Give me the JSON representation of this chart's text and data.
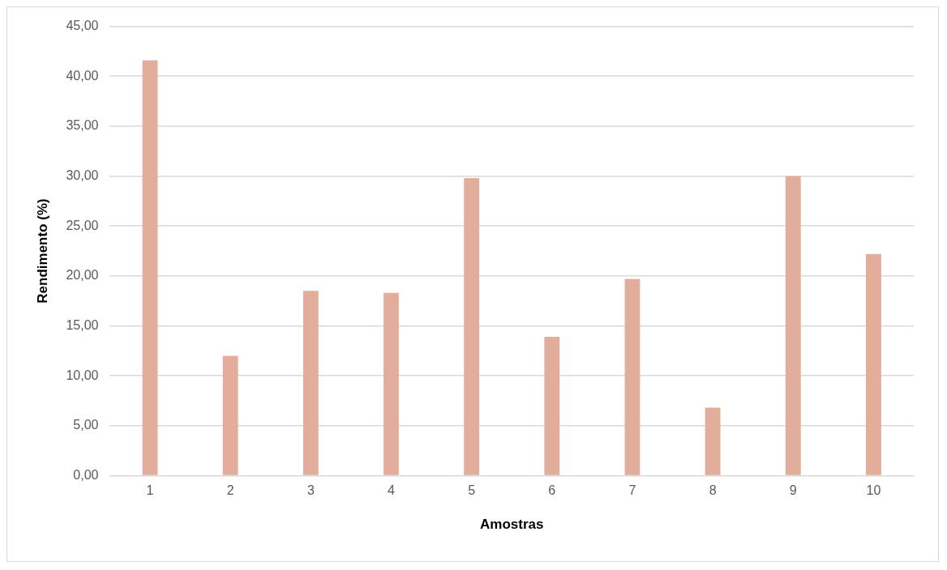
{
  "chart_data": {
    "type": "bar",
    "xlabel": "Amostras",
    "ylabel": "Rendimento (%)",
    "categories": [
      "1",
      "2",
      "3",
      "4",
      "5",
      "6",
      "7",
      "8",
      "9",
      "10"
    ],
    "values": [
      41.6,
      12.0,
      18.5,
      18.3,
      29.8,
      13.9,
      19.7,
      6.8,
      30.0,
      22.2
    ],
    "color": "#e3ad9c",
    "ylim": [
      0,
      45
    ],
    "yticks": [
      {
        "value": 0,
        "label": "0,00"
      },
      {
        "value": 5,
        "label": "5,00"
      },
      {
        "value": 10,
        "label": "10,00"
      },
      {
        "value": 15,
        "label": "15,00"
      },
      {
        "value": 20,
        "label": "20,00"
      },
      {
        "value": 25,
        "label": "25,00"
      },
      {
        "value": 30,
        "label": "30,00"
      },
      {
        "value": 35,
        "label": "35,00"
      },
      {
        "value": 40,
        "label": "40,00"
      },
      {
        "value": 45,
        "label": "45,00"
      }
    ],
    "grid": "y"
  }
}
